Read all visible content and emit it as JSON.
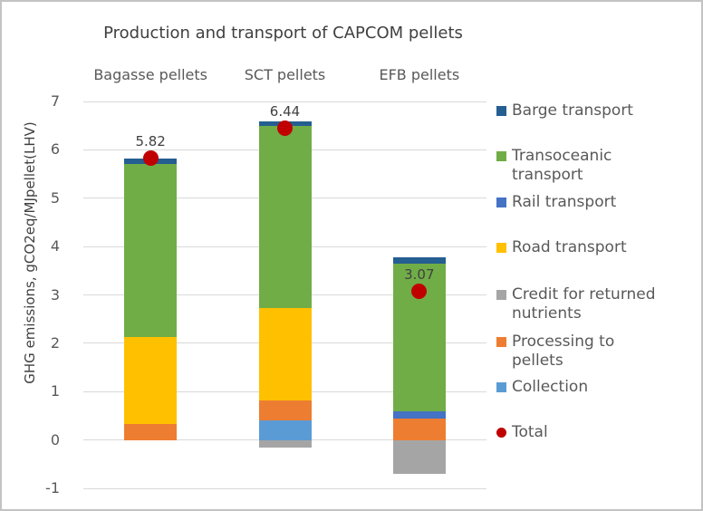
{
  "title": "Production and transport of CAPCOM pellets",
  "y_axis": {
    "title": "GHG emissions, gCO2eq/MJpellet(LHV)",
    "ticks": [
      7,
      6,
      5,
      4,
      3,
      2,
      1,
      0,
      -1
    ]
  },
  "chart_data": {
    "type": "bar",
    "stacked": true,
    "title": "Production and transport of CAPCOM pellets",
    "ylabel": "GHG emissions, gCO2eq/MJpellet(LHV)",
    "ylim": [
      -1,
      7
    ],
    "grid": true,
    "legend_position": "right",
    "categories": [
      "Bagasse pellets",
      "SCT pellets",
      "EFB pellets"
    ],
    "series": [
      {
        "name": "Collection",
        "color": "#5B9BD5",
        "values": [
          0,
          0.4,
          0
        ]
      },
      {
        "name": "Processing to pellets",
        "color": "#ED7D31",
        "values": [
          0.33,
          0.41,
          0.45
        ]
      },
      {
        "name": "Credit for returned nutrients",
        "color": "#A5A5A5",
        "values": [
          0,
          -0.15,
          -0.7
        ]
      },
      {
        "name": "Road transport",
        "color": "#FFC000",
        "values": [
          1.79,
          1.91,
          0
        ]
      },
      {
        "name": "Rail transport",
        "color": "#4472C4",
        "values": [
          0,
          0,
          0.15
        ]
      },
      {
        "name": "Transoceanic transport",
        "color": "#70AD47",
        "values": [
          3.58,
          3.78,
          3.05
        ]
      },
      {
        "name": "Barge transport",
        "color": "#255E91",
        "values": [
          0.12,
          0.09,
          0.12
        ]
      }
    ],
    "totals": {
      "name": "Total",
      "color": "#C00000",
      "values": [
        5.82,
        6.44,
        3.07
      ],
      "labels": [
        "5.82",
        "6.44",
        "3.07"
      ]
    }
  },
  "legend": {
    "items": [
      {
        "label": "Barge transport",
        "lines": [
          "Barge transport"
        ],
        "color": "#255E91",
        "shape": "square"
      },
      {
        "label": "Transoceanic transport",
        "lines": [
          "Transoceanic",
          "transport"
        ],
        "color": "#70AD47",
        "shape": "square"
      },
      {
        "label": "Rail transport",
        "lines": [
          "Rail transport"
        ],
        "color": "#4472C4",
        "shape": "square"
      },
      {
        "label": "Road transport",
        "lines": [
          "Road transport"
        ],
        "color": "#FFC000",
        "shape": "square"
      },
      {
        "label": "Credit for returned nutrients",
        "lines": [
          "Credit for returned",
          "nutrients"
        ],
        "color": "#A5A5A5",
        "shape": "square"
      },
      {
        "label": "Processing to pellets",
        "lines": [
          "Processing to",
          "pellets"
        ],
        "color": "#ED7D31",
        "shape": "square"
      },
      {
        "label": "Collection",
        "lines": [
          "Collection"
        ],
        "color": "#5B9BD5",
        "shape": "square"
      },
      {
        "label": "Total",
        "lines": [
          "Total"
        ],
        "color": "#C00000",
        "shape": "circle"
      }
    ]
  },
  "colors": {
    "grid": "#D9D9D9",
    "axis_text": "#595959",
    "title_text": "#404040",
    "border": "#C3C3C3",
    "total_marker": "#C00000"
  }
}
